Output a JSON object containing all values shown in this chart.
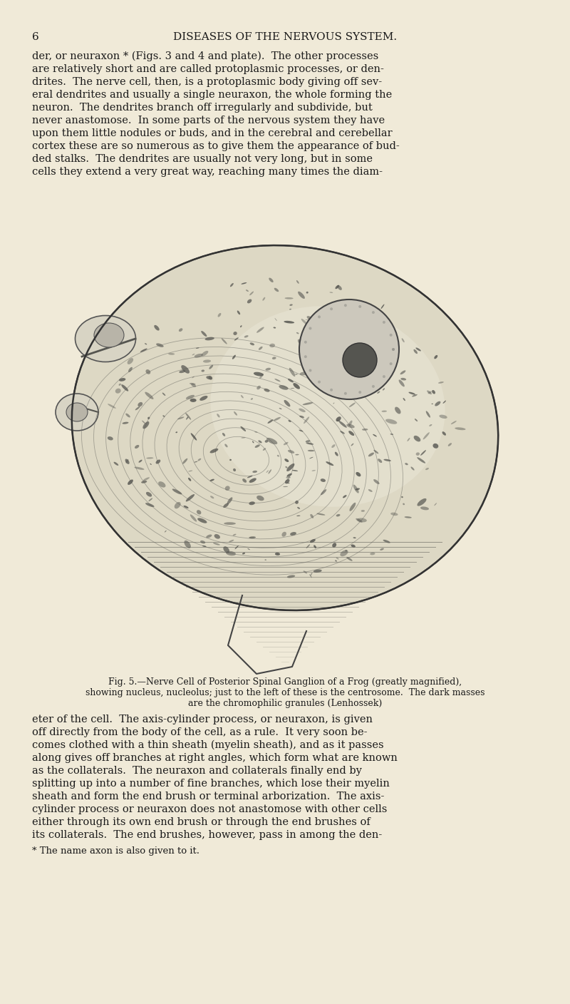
{
  "bg_color": "#f0ead8",
  "page_number": "6",
  "header": "DISEASES OF THE NERVOUS SYSTEM.",
  "text_color": "#1a1a1a",
  "fig_caption_title": "Fig. 5.—Nerve Cell of Posterior Spinal Ganglion of a Frog (greatly magnified),",
  "fig_caption_line2": "showing nucleus, nucleolus; just to the left of these is the centrosome.  The dark masses",
  "fig_caption_line3": "are the chromophilic granules (Lenhossek)",
  "body_text_top": [
    "der, or neuraxon * (Figs. 3 and 4 and plate).  The other processes",
    "are relatively short and are called protoplasmic processes, or den-",
    "drites.  The nerve cell, then, is a protoplasmic body giving off sev-",
    "eral dendrites and usually a single neuraxon, the whole forming the",
    "neuron.  The dendrites branch off irregularly and subdivide, but",
    "never anastomose.  In some parts of the nervous system they have",
    "upon them little nodules or buds, and in the cerebral and cerebellar",
    "cortex these are so numerous as to give them the appearance of bud-",
    "ded stalks.  The dendrites are usually not very long, but in some",
    "cells they extend a very great way, reaching many times the diam-"
  ],
  "body_text_bottom": [
    "eter of the cell.  The axis-cylinder process, or neuraxon, is given",
    "off directly from the body of the cell, as a rule.  It very soon be-",
    "comes clothed with a thin sheath (myelin sheath), and as it passes",
    "along gives off branches at right angles, which form what are known",
    "as the collaterals.  The neuraxon and collaterals finally end by",
    "splitting up into a number of fine branches, which lose their myelin",
    "sheath and form the end brush or terminal arborization.  The axis-",
    "cylinder process or neuraxon does not anastomose with other cells",
    "either through its own end brush or through the end brushes of",
    "its collaterals.  The end brushes, however, pass in among the den-",
    "* The name axon is also given to it."
  ],
  "font_size_body": 10.5,
  "font_size_header": 11,
  "font_size_caption": 9,
  "cell_color": "#d8d0b8",
  "nucleus_color": "#b8b4a8",
  "nucleolus_color": "#555550",
  "dot_color": "#555550",
  "outline_color": "#3a3a3a"
}
